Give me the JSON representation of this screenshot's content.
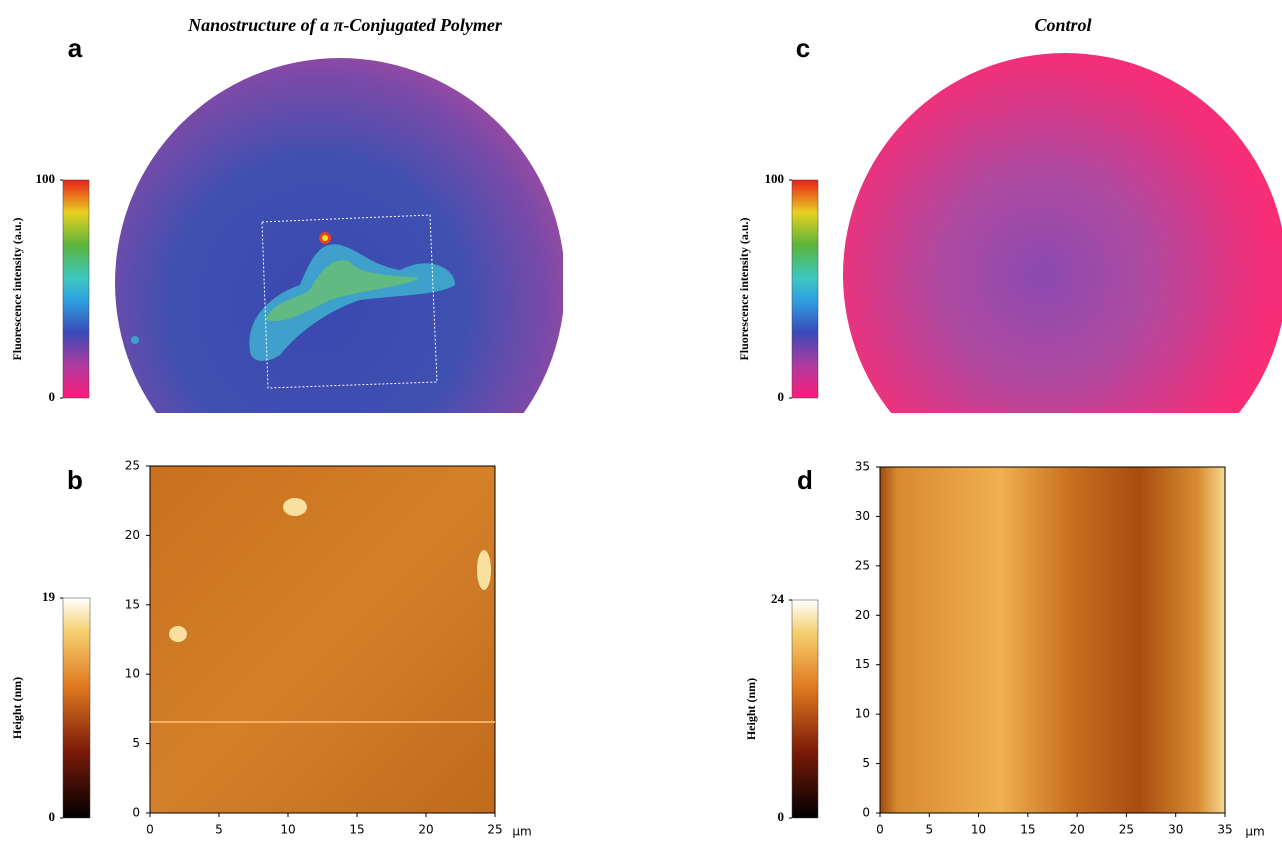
{
  "panels": [
    {
      "letter": "a",
      "title": "Nanostructure of a π-Conjugated Polymer",
      "colorbar": {
        "label": "Fluorescence intensity (a.u.)",
        "lim": [
          0,
          100
        ],
        "ticks": [
          0,
          100
        ]
      }
    },
    {
      "letter": "b",
      "colorbar": {
        "label": "Height (nm)",
        "lim": [
          0,
          19
        ],
        "ticks": [
          0,
          19
        ]
      },
      "axis": {
        "lim": [
          0,
          25
        ],
        "ticks": [
          0,
          5,
          10,
          15,
          20,
          25
        ],
        "unit": "μm"
      }
    },
    {
      "letter": "c",
      "title": "Control",
      "colorbar": {
        "label": "Fluorescence intensity (a.u.)",
        "lim": [
          0,
          100
        ],
        "ticks": [
          0,
          100
        ]
      }
    },
    {
      "letter": "d",
      "colorbar": {
        "label": "Height (nm)",
        "lim": [
          0,
          24
        ],
        "ticks": [
          0,
          24
        ]
      },
      "axis": {
        "lim": [
          0,
          35
        ],
        "ticks": [
          0,
          5,
          10,
          15,
          20,
          25,
          30,
          35
        ],
        "unit": "μm"
      }
    }
  ]
}
